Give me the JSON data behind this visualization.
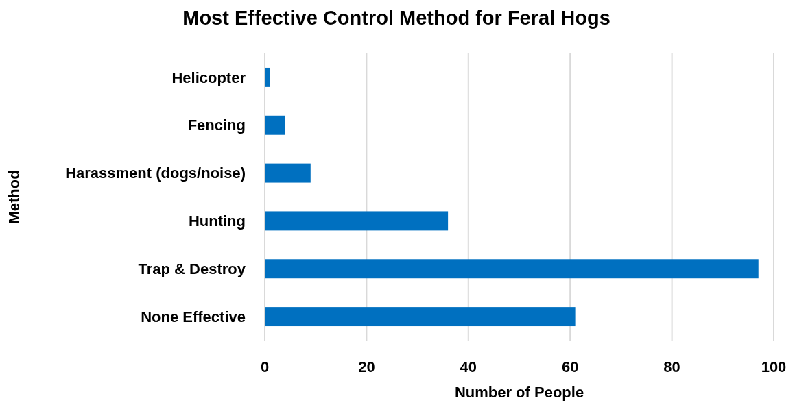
{
  "chart_data": {
    "type": "bar",
    "orientation": "horizontal",
    "title": "Most Effective Control Method for Feral Hogs",
    "xlabel": "Number of People",
    "ylabel": "Method",
    "categories": [
      "Helicopter",
      "Fencing",
      "Harassment (dogs/noise)",
      "Hunting",
      "Trap & Destroy",
      "None Effective"
    ],
    "values": [
      1,
      4,
      9,
      36,
      97,
      61
    ],
    "color": "#0070c0",
    "xlim": [
      0,
      100
    ],
    "xticks": [
      0,
      20,
      40,
      60,
      80,
      100
    ],
    "grid": "x"
  }
}
